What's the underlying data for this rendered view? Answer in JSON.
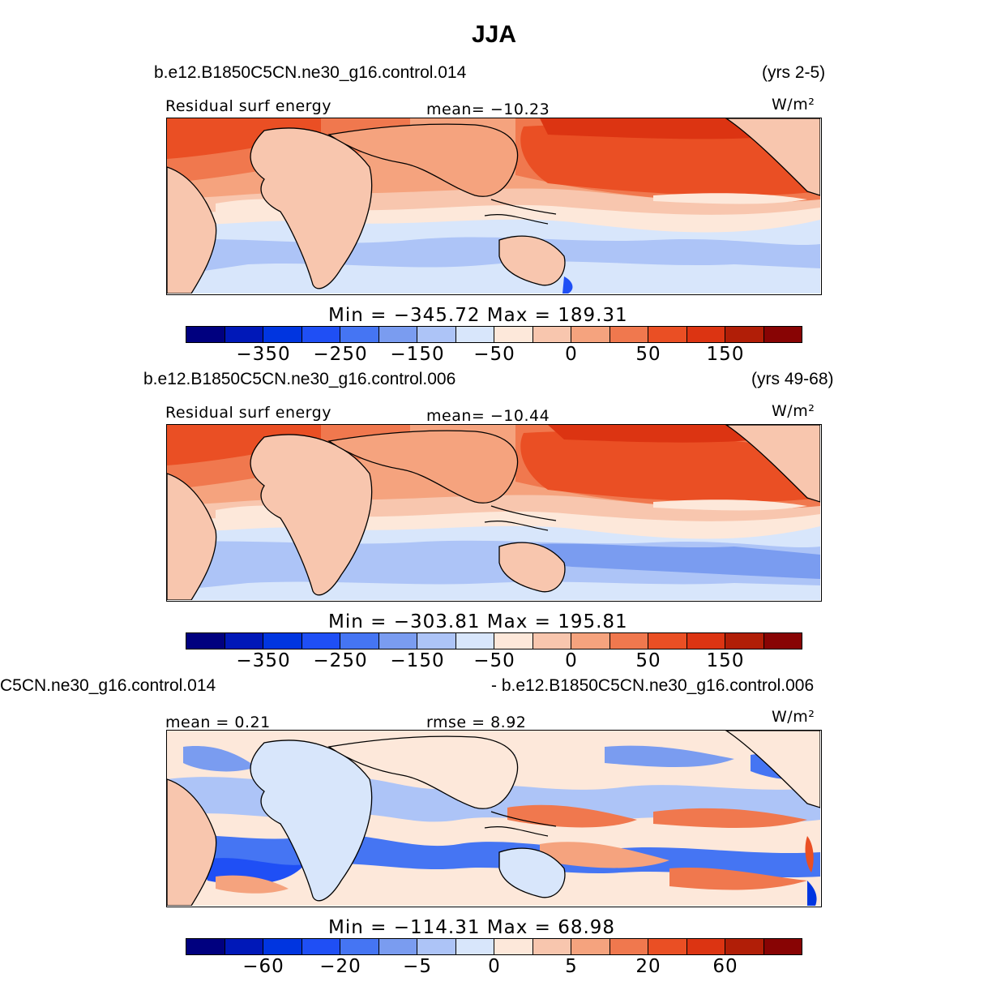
{
  "figure": {
    "title": "JJA",
    "units": "W/m²"
  },
  "palette": [
    "#00007f",
    "#0018b8",
    "#0035e0",
    "#1f4ff5",
    "#4575f3",
    "#7a9cf0",
    "#adc4f7",
    "#d8e6fb",
    "#fde8da",
    "#f8c6ae",
    "#f5a37e",
    "#f0784e",
    "#ea4f24",
    "#dc3412",
    "#b11e07",
    "#880404"
  ],
  "chart_data": [
    {
      "type": "heatmap",
      "case": "b.e12.B1850C5CN.ne30_g16.control.014",
      "years": "(yrs 2-5)",
      "variable": "Residual surf energy",
      "stat_left": "mean=  −10.23",
      "stat_right": "",
      "units": "W/m²",
      "minmax": "Min  =  −345.72  Max  =  189.31",
      "colorbar_ticks": [
        "−350",
        "−250",
        "−150",
        "−50",
        "0",
        "50",
        "150"
      ],
      "min": -345.72,
      "max": 189.31,
      "mean": -10.23
    },
    {
      "type": "heatmap",
      "case": "b.e12.B1850C5CN.ne30_g16.control.006",
      "years": "(yrs 49-68)",
      "variable": "Residual surf energy",
      "stat_left": "mean=  −10.44",
      "stat_right": "",
      "units": "W/m²",
      "minmax": "Min  =  −303.81  Max  =  195.81",
      "colorbar_ticks": [
        "−350",
        "−250",
        "−150",
        "−50",
        "0",
        "50",
        "150"
      ],
      "min": -303.81,
      "max": 195.81,
      "mean": -10.44
    },
    {
      "type": "heatmap",
      "case": "C5CN.ne30_g16.control.014",
      "years": "- b.e12.B1850C5CN.ne30_g16.control.006",
      "variable": "",
      "stat_left": "mean =     0.21",
      "stat_right": "rmse  =     8.92",
      "units": "W/m²",
      "minmax": "Min  =  −114.31  Max  =     68.98",
      "colorbar_ticks": [
        "−60",
        "−20",
        "−5",
        "0",
        "5",
        "20",
        "60"
      ],
      "min": -114.31,
      "max": 68.98,
      "mean": 0.21,
      "rmse": 8.92
    }
  ]
}
